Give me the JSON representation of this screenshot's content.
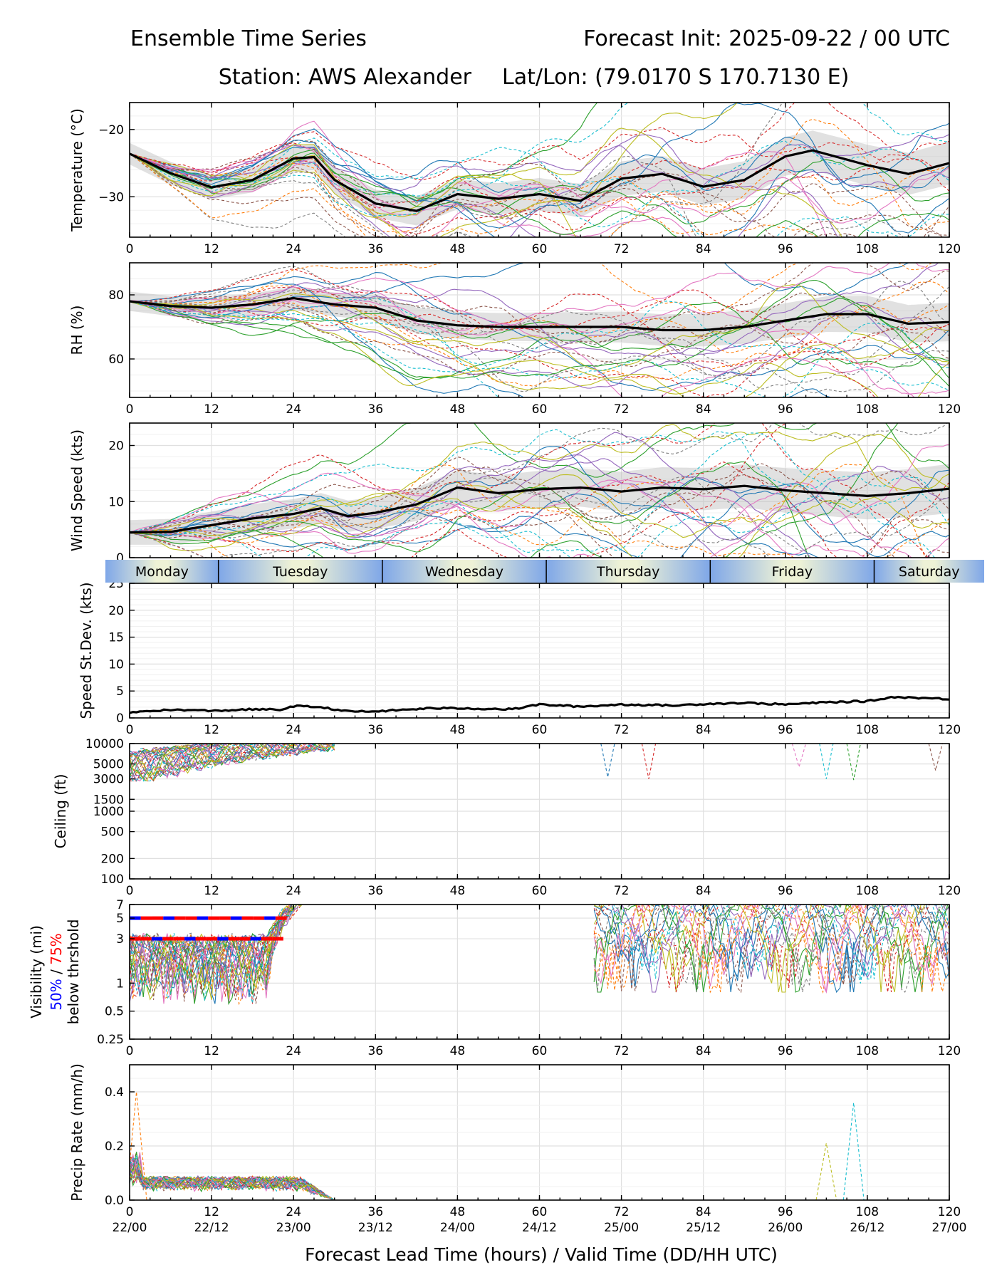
{
  "header": {
    "title_left": "Ensemble Time Series",
    "title_right": "Forecast Init: 2025-09-22 / 00 UTC",
    "station": "Station: AWS Alexander",
    "latlon": "Lat/Lon: (79.0170 S 170.7130 E)"
  },
  "x_axis": {
    "label": "Forecast Lead Time (hours) / Valid Time (DD/HH UTC)",
    "ticks": [
      0,
      12,
      24,
      36,
      48,
      60,
      72,
      84,
      96,
      108,
      120
    ],
    "valid_time_labels": [
      "22/00",
      "22/12",
      "23/00",
      "23/12",
      "24/00",
      "24/12",
      "25/00",
      "25/12",
      "26/00",
      "26/12",
      "27/00"
    ]
  },
  "day_bar": [
    "Monday",
    "Tuesday",
    "Wednesday",
    "Thursday",
    "Friday",
    "Saturday"
  ],
  "colors": {
    "mean": "#000000",
    "spread": "#bdbdbd",
    "vis_50": "#0000ff",
    "vis_75": "#ff0000",
    "members": [
      "#1f77b4",
      "#ff7f0e",
      "#2ca02c",
      "#d62728",
      "#9467bd",
      "#8c564b",
      "#e377c2",
      "#7f7f7f",
      "#bcbd22",
      "#17becf"
    ]
  },
  "chart_data": [
    {
      "type": "line",
      "id": "temperature",
      "ylabel": "Temperature (°C)",
      "ylim": [
        -36,
        -16
      ],
      "yticks": [
        -30,
        -20
      ],
      "ytick_labels": [
        "−30",
        "−20"
      ],
      "series_mean": {
        "x": [
          0,
          6,
          12,
          18,
          24,
          27,
          30,
          36,
          42,
          48,
          54,
          60,
          66,
          72,
          78,
          84,
          90,
          96,
          100,
          108,
          114,
          120
        ],
        "y": [
          -23.6,
          -26.5,
          -28.6,
          -27.5,
          -24.3,
          -24.1,
          -27.5,
          -31.0,
          -32.1,
          -29.6,
          -30.3,
          -29.6,
          -30.6,
          -27.3,
          -26.6,
          -28.5,
          -27.5,
          -24.0,
          -23.1,
          -25.3,
          -26.6,
          -25.0
        ]
      },
      "spread_width": 1.6,
      "n_members": 30
    },
    {
      "type": "line",
      "id": "rh",
      "ylabel": "RH (%)",
      "ylim": [
        48,
        90
      ],
      "yticks": [
        60,
        80
      ],
      "ytick_labels": [
        "60",
        "80"
      ],
      "series_mean": {
        "x": [
          0,
          6,
          12,
          18,
          24,
          30,
          36,
          42,
          48,
          54,
          60,
          66,
          72,
          78,
          84,
          90,
          96,
          102,
          108,
          114,
          120
        ],
        "y": [
          78,
          76.5,
          76,
          77,
          79,
          77,
          76,
          72,
          70.5,
          70,
          70,
          70,
          70,
          69,
          69,
          70,
          72,
          74,
          74,
          71,
          71.5
        ]
      },
      "spread_width": 3.0,
      "n_members": 30
    },
    {
      "type": "line",
      "id": "wind_speed",
      "ylabel": "Wind Speed (kts)",
      "ylim": [
        0,
        24
      ],
      "yticks": [
        0,
        10,
        20
      ],
      "ytick_labels": [
        "0",
        "10",
        "20"
      ],
      "series_mean": {
        "x": [
          0,
          6,
          12,
          18,
          24,
          28,
          32,
          36,
          42,
          48,
          54,
          60,
          66,
          72,
          78,
          84,
          90,
          96,
          102,
          108,
          114,
          120
        ],
        "y": [
          4.5,
          4.6,
          5.8,
          7.0,
          7.8,
          8.8,
          7.4,
          8.0,
          9.5,
          12.5,
          11.5,
          12.2,
          12.5,
          11.8,
          12.5,
          12.2,
          12.8,
          12.0,
          11.5,
          11.0,
          11.5,
          12.3
        ]
      },
      "spread_width": 2.2,
      "n_members": 30
    },
    {
      "type": "line",
      "id": "speed_stdev",
      "ylabel": "Speed St.Dev. (kts)",
      "ylim": [
        0,
        25
      ],
      "yticks": [
        0,
        5,
        10,
        15,
        20,
        25
      ],
      "ytick_labels": [
        "0",
        "5",
        "10",
        "15",
        "20",
        "25"
      ],
      "series_mean": {
        "x": [
          0,
          4,
          8,
          12,
          18,
          22,
          24,
          28,
          32,
          36,
          44,
          48,
          56,
          60,
          66,
          72,
          80,
          84,
          90,
          96,
          102,
          108,
          112,
          120
        ],
        "y": [
          1.0,
          1.4,
          1.5,
          1.3,
          1.6,
          1.5,
          2.2,
          2.0,
          1.2,
          1.2,
          1.8,
          1.8,
          1.6,
          2.5,
          2.1,
          2.5,
          2.3,
          2.6,
          2.8,
          2.5,
          2.9,
          3.1,
          3.9,
          3.5
        ]
      }
    },
    {
      "type": "line",
      "id": "ceiling",
      "ylabel": "Ceiling (ft)",
      "scale": "log",
      "ylim": [
        100,
        10000
      ],
      "yticks": [
        100,
        200,
        500,
        1000,
        1500,
        3000,
        5000,
        10000
      ],
      "ytick_labels": [
        "100",
        "200",
        "500",
        "1000",
        "1500",
        "3000",
        "5000",
        "10000"
      ]
    },
    {
      "type": "line",
      "id": "visibility",
      "ylabel": "Visibility (mi)",
      "ylabel_50": "50%",
      "ylabel_sep": " / ",
      "ylabel_75": "75%",
      "ylabel_below": "below thrshold",
      "scale": "log",
      "ylim": [
        0.25,
        7
      ],
      "yticks": [
        0.25,
        0.5,
        1,
        3,
        5,
        7
      ],
      "ytick_labels": [
        "0.25",
        "0.5",
        "1",
        "3",
        "5",
        "7"
      ],
      "threshold_lines": [
        {
          "level": 5,
          "x_start": 0,
          "x_end": 23
        },
        {
          "level": 3,
          "x_start": 0,
          "x_end": 22.5
        }
      ]
    },
    {
      "type": "line",
      "id": "precip",
      "ylabel": "Precip Rate (mm/h)",
      "ylim": [
        0,
        0.5
      ],
      "yticks": [
        0.0,
        0.2,
        0.4
      ],
      "ytick_labels": [
        "0.0",
        "0.2",
        "0.4"
      ],
      "peaks": [
        {
          "x": 1,
          "y": 0.4
        },
        {
          "x": 106,
          "y": 0.36
        },
        {
          "x": 102,
          "y": 0.21
        }
      ]
    }
  ]
}
